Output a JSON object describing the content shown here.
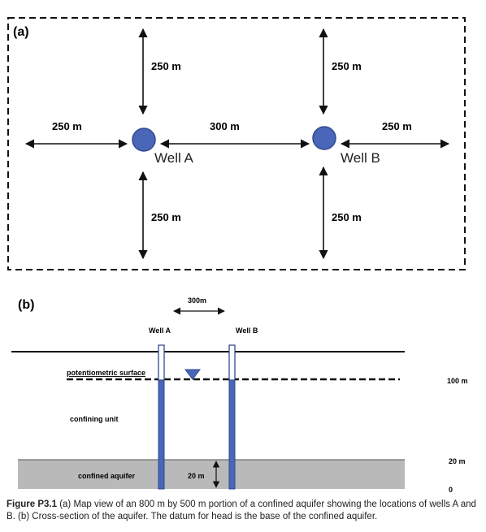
{
  "panel_a": {
    "label": "(a)",
    "dist_a_top": "250 m",
    "dist_a_left": "250 m",
    "dist_ab": "300 m",
    "dist_b_right": "250 m",
    "dist_b_top": "250 m",
    "dist_a_bottom": "250 m",
    "dist_b_bottom": "250 m",
    "well_a_label": "Well A",
    "well_b_label": "Well B"
  },
  "panel_b": {
    "label": "(b)",
    "spacing": "300m",
    "well_a_label": "Well A",
    "well_b_label": "Well B",
    "potentiometric_surface": "potentiometric surface",
    "confining_unit": "confining unit",
    "confined_aquifer": "confined aquifer",
    "aquifer_thickness": "20 m",
    "elev_100": "100 m",
    "elev_20": "20 m",
    "elev_0": "0"
  },
  "caption": {
    "figure_label": "Figure P3.1",
    "text": "  (a) Map view of an 800 m by 500 m portion of a confined aquifer showing the locations of wells A and B. (b) Cross-section of the aquifer. The datum for head is the base of the confined aquifer."
  },
  "colors": {
    "well_fill": "#4a66b8",
    "well_stroke": "#2f4a8f",
    "aquifer_fill": "#b9b9b9"
  }
}
